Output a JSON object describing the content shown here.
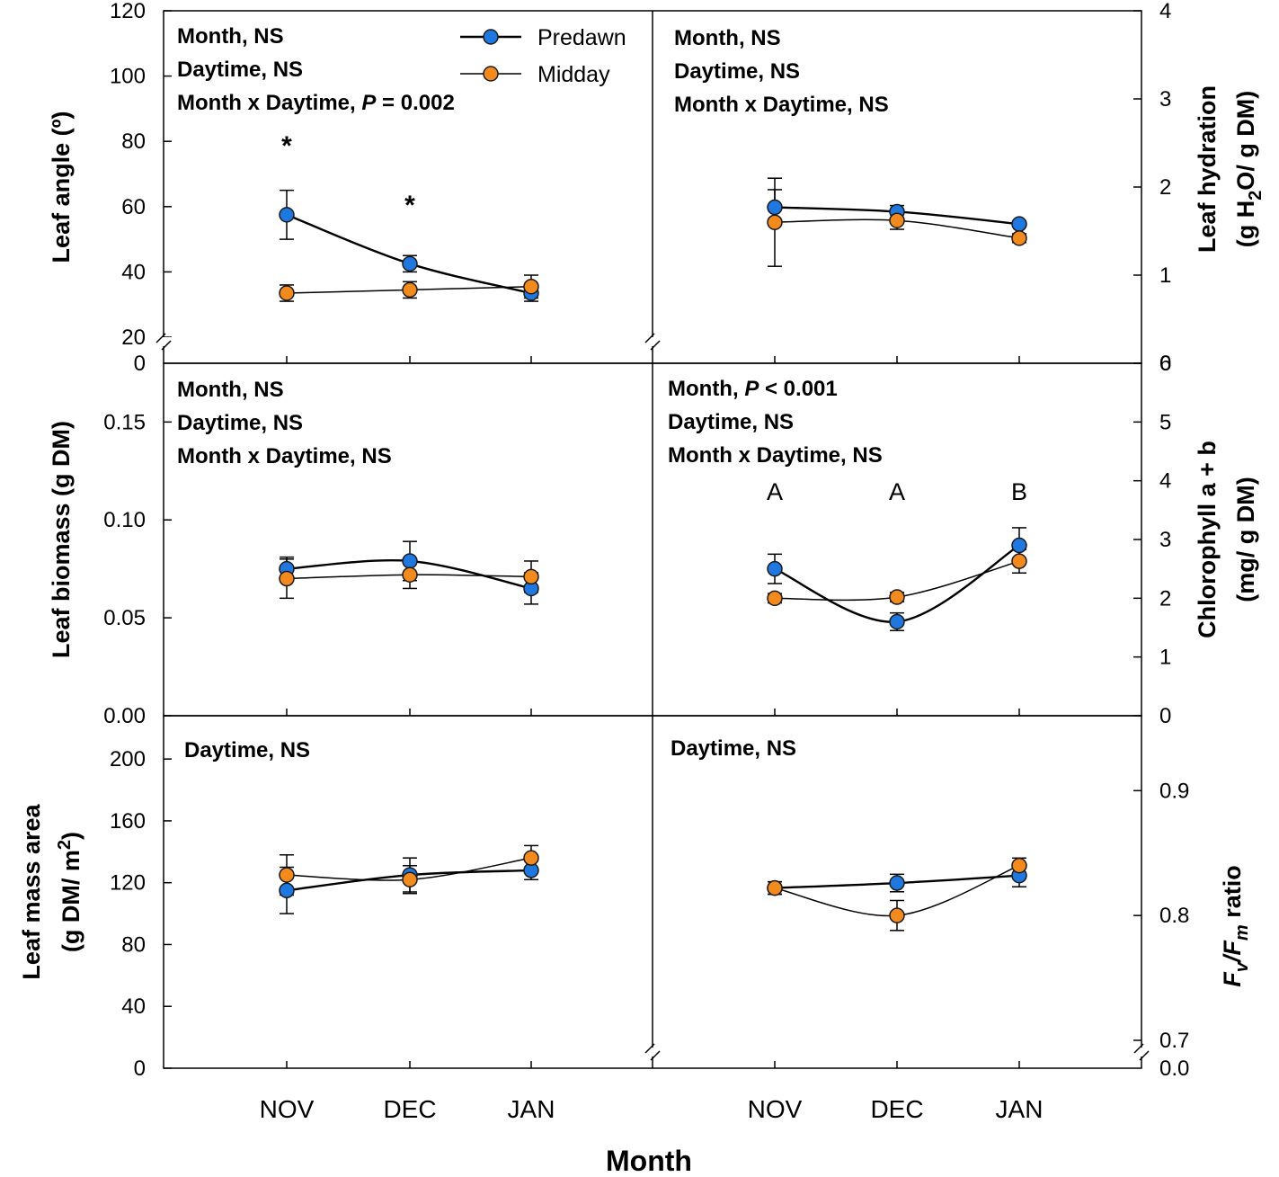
{
  "figure": {
    "x_title": "Month",
    "months": [
      "NOV",
      "DEC",
      "JAN"
    ]
  },
  "legend": {
    "predawn": "Predawn",
    "midday": "Midday"
  },
  "colors": {
    "predawn": "#1f77e0",
    "midday": "#f28a1e",
    "marker_edge": "#1a1a1a"
  },
  "chart_data": [
    {
      "id": "leaf-angle",
      "type": "line",
      "ylabel": "Leaf angle (º)",
      "ylim": [
        20,
        120
      ],
      "yticks": [
        "0",
        "20",
        "40",
        "60",
        "80",
        "100",
        "120"
      ],
      "axis_break": true,
      "stats": [
        "Month, NS",
        "Daytime, NS",
        "Month x Daytime, P = 0.002"
      ],
      "annotations": [
        "*",
        "*"
      ],
      "categories": [
        "NOV",
        "DEC",
        "JAN"
      ],
      "series": [
        {
          "name": "Predawn",
          "values": [
            57.5,
            42.5,
            33.5
          ],
          "errors": [
            7.5,
            2.5,
            2.5
          ]
        },
        {
          "name": "Midday",
          "values": [
            33.5,
            34.5,
            35.5
          ],
          "errors": [
            2.5,
            2.5,
            3.5
          ]
        }
      ]
    },
    {
      "id": "leaf-hydration",
      "type": "line",
      "ylabel": "Leaf hydration",
      "ylabel2": "(g H2O/ g DM)",
      "ylim": [
        0,
        4
      ],
      "yticks": [
        "0",
        "1",
        "2",
        "3",
        "4"
      ],
      "stats": [
        "Month, NS",
        "Daytime, NS",
        "Month x Daytime, NS"
      ],
      "categories": [
        "NOV",
        "DEC",
        "JAN"
      ],
      "series": [
        {
          "name": "Predawn",
          "values": [
            1.77,
            1.72,
            1.58
          ],
          "errors": [
            0.2,
            0.07,
            0.03
          ]
        },
        {
          "name": "Midday",
          "values": [
            1.6,
            1.62,
            1.42
          ],
          "errors": [
            0.5,
            0.1,
            0.05
          ]
        }
      ]
    },
    {
      "id": "leaf-biomass",
      "type": "line",
      "ylabel": "Leaf biomass (g DM)",
      "ylim": [
        0,
        0.18
      ],
      "yticks": [
        "0.00",
        "0.05",
        "0.10",
        "0.15"
      ],
      "stats": [
        "Month, NS",
        "Daytime, NS",
        "Month x Daytime, NS"
      ],
      "categories": [
        "NOV",
        "DEC",
        "JAN"
      ],
      "series": [
        {
          "name": "Predawn",
          "values": [
            0.075,
            0.079,
            0.065
          ],
          "errors": [
            0.006,
            0.01,
            0.008
          ]
        },
        {
          "name": "Midday",
          "values": [
            0.07,
            0.072,
            0.071
          ],
          "errors": [
            0.01,
            0.007,
            0.008
          ]
        }
      ]
    },
    {
      "id": "chlorophyll",
      "type": "line",
      "ylabel": "Chlorophyll a + b",
      "ylabel2": "(mg/ g DM)",
      "ylim": [
        0,
        6
      ],
      "yticks": [
        "0",
        "1",
        "2",
        "3",
        "4",
        "5",
        "6"
      ],
      "stats": [
        "Month, P < 0.001",
        "Daytime, NS",
        "Month x Daytime, NS"
      ],
      "annotations": [
        "A",
        "A",
        "B"
      ],
      "categories": [
        "NOV",
        "DEC",
        "JAN"
      ],
      "series": [
        {
          "name": "Predawn",
          "values": [
            2.5,
            1.6,
            2.9
          ],
          "errors": [
            0.25,
            0.15,
            0.3
          ]
        },
        {
          "name": "Midday",
          "values": [
            2.0,
            2.02,
            2.63
          ],
          "errors": [
            0.08,
            0.08,
            0.2
          ]
        }
      ]
    },
    {
      "id": "leaf-mass-area",
      "type": "line",
      "ylabel": "Leaf mass area",
      "ylabel2": "(g DM/ m2)",
      "ylim": [
        0,
        228
      ],
      "yticks": [
        "0",
        "40",
        "80",
        "120",
        "160",
        "200"
      ],
      "stats": [
        "Daytime, NS"
      ],
      "categories": [
        "NOV",
        "DEC",
        "JAN"
      ],
      "series": [
        {
          "name": "Predawn",
          "values": [
            115,
            125,
            128
          ],
          "errors": [
            15,
            11,
            6
          ]
        },
        {
          "name": "Midday",
          "values": [
            125,
            122,
            136
          ],
          "errors": [
            13,
            9,
            8
          ]
        }
      ]
    },
    {
      "id": "fv-fm",
      "type": "line",
      "ylabel": "Fv/Fm ratio",
      "ylim": [
        0.7,
        0.96
      ],
      "yticks": [
        "0.0",
        "0.7",
        "0.8",
        "0.9"
      ],
      "axis_break": true,
      "stats": [
        "Daytime, NS"
      ],
      "categories": [
        "NOV",
        "DEC",
        "JAN"
      ],
      "series": [
        {
          "name": "Predawn",
          "values": [
            0.822,
            0.826,
            0.832
          ],
          "errors": [
            0.005,
            0.007,
            0.009
          ]
        },
        {
          "name": "Midday",
          "values": [
            0.822,
            0.8,
            0.84
          ],
          "errors": [
            0.005,
            0.012,
            0.006
          ]
        }
      ]
    }
  ]
}
